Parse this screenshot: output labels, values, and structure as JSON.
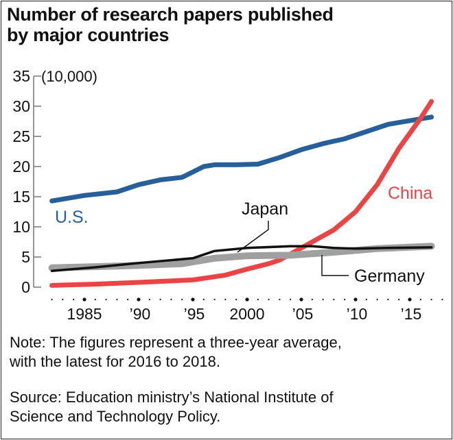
{
  "title_line1": "Number of research papers published",
  "title_line2": "by major countries",
  "chart_data": {
    "type": "line",
    "title": "Number of research papers published by major countries",
    "unit_label": "(10,000)",
    "ylim": [
      0,
      35
    ],
    "yticks": [
      0,
      5,
      10,
      15,
      20,
      25,
      30,
      35
    ],
    "xticks": [
      {
        "year": 1985,
        "label": "1985"
      },
      {
        "year": 1990,
        "label": "’90"
      },
      {
        "year": 1995,
        "label": "’95"
      },
      {
        "year": 2000,
        "label": "2000"
      },
      {
        "year": 2005,
        "label": "’05"
      },
      {
        "year": 2010,
        "label": "’10"
      },
      {
        "year": 2015,
        "label": "’15"
      }
    ],
    "xlim": [
      1982,
      2017
    ],
    "grid": false,
    "series": [
      {
        "name": "U.S.",
        "color": "#265f99",
        "x": [
          1982,
          1985,
          1988,
          1990,
          1992,
          1994,
          1996,
          1997,
          1999,
          2001,
          2003,
          2005,
          2007,
          2009,
          2011,
          2013,
          2015,
          2017
        ],
        "y": [
          14.3,
          15.2,
          15.8,
          17.0,
          17.8,
          18.2,
          20.0,
          20.3,
          20.3,
          20.4,
          21.5,
          22.8,
          23.8,
          24.6,
          25.8,
          27.0,
          27.6,
          28.2
        ]
      },
      {
        "name": "China",
        "color": "#ea4545",
        "x": [
          1982,
          1986,
          1990,
          1995,
          1998,
          2000,
          2002,
          2003,
          2005,
          2008,
          2010,
          2012,
          2014,
          2016,
          2017
        ],
        "y": [
          0.3,
          0.5,
          0.8,
          1.2,
          2.0,
          3.0,
          3.9,
          4.5,
          6.5,
          9.5,
          12.5,
          17.0,
          23.0,
          28.0,
          30.8
        ]
      },
      {
        "name": "Germany",
        "color": "#a0a0a0",
        "x": [
          1982,
          1986,
          1990,
          1994,
          1997,
          2000,
          2004,
          2008,
          2012,
          2017
        ],
        "y": [
          3.2,
          3.4,
          3.6,
          3.9,
          4.8,
          5.2,
          5.3,
          5.8,
          6.4,
          6.8
        ]
      },
      {
        "name": "Japan",
        "color": "#111111",
        "x": [
          1982,
          1986,
          1990,
          1995,
          1997,
          2000,
          2004,
          2006,
          2008,
          2010,
          2013,
          2017
        ],
        "y": [
          2.7,
          3.3,
          4.0,
          4.8,
          6.0,
          6.5,
          6.8,
          6.8,
          6.5,
          6.4,
          6.5,
          6.6
        ]
      }
    ]
  },
  "note": [
    "Note: The figures represent a three-year average,",
    "with the latest for 2016 to 2018."
  ],
  "source": [
    "Source: Education ministry’s National Institute of",
    "Science and Technology Policy."
  ]
}
